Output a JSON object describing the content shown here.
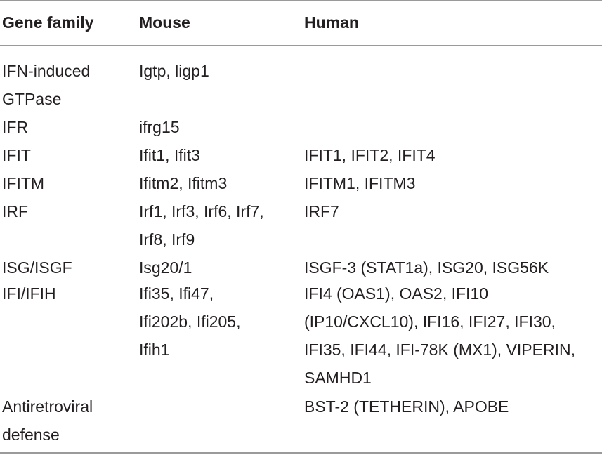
{
  "header": {
    "gene_family": "Gene family",
    "mouse": "Mouse",
    "human": "Human"
  },
  "rows": [
    {
      "gene_family": "IFN-induced\nGTPase",
      "mouse": "Igtp, ligp1",
      "human": ""
    },
    {
      "gene_family": "IFR",
      "mouse": "ifrg15",
      "human": ""
    },
    {
      "gene_family": "IFIT",
      "mouse": "Ifit1, Ifit3",
      "human": "IFIT1, IFIT2, IFIT4"
    },
    {
      "gene_family": "IFITM",
      "mouse": "Ifitm2, Ifitm3",
      "human": "IFITM1, IFITM3"
    },
    {
      "gene_family": "IRF",
      "mouse": "Irf1, Irf3, Irf6, Irf7,\nIrf8, Irf9",
      "human": "IRF7"
    },
    {
      "gene_family": "ISG/ISGF",
      "mouse": "Isg20/1",
      "human": "ISGF-3 (STAT1a), ISG20, ISG56K"
    },
    {
      "gene_family": "IFI/IFIH",
      "mouse": "Ifi35, Ifi47,\nIfi202b, Ifi205,\nIfih1",
      "human": "IFI4 (OAS1), OAS2, IFI10\n(IP10/CXCL10), IFI16, IFI27, IFI30,\nIFI35, IFI44, IFI-78K (MX1), VIPERIN,\nSAMHD1"
    },
    {
      "gene_family": "Antiretroviral\ndefense",
      "mouse": "",
      "human": "BST-2 (TETHERIN), APOBE"
    }
  ]
}
